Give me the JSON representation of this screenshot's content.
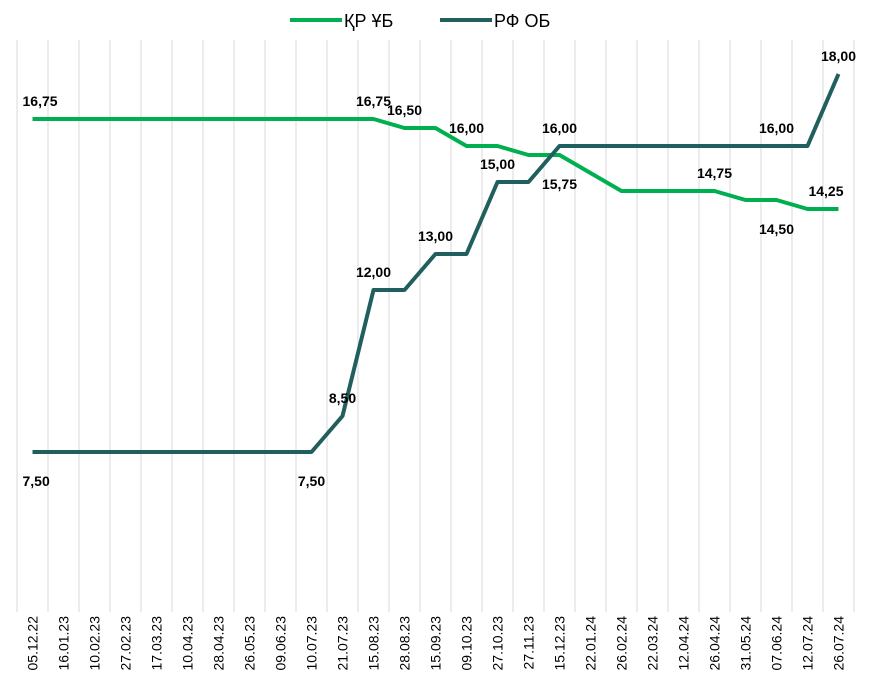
{
  "chart_data": {
    "type": "line",
    "categories": [
      "05.12.22",
      "16.01.23",
      "10.02.23",
      "27.02.23",
      "17.03.23",
      "10.04.23",
      "28.04.23",
      "26.05.23",
      "09.06.23",
      "10.07.23",
      "21.07.23",
      "15.08.23",
      "28.08.23",
      "15.09.23",
      "09.10.23",
      "27.10.23",
      "27.11.23",
      "15.12.23",
      "22.01.24",
      "26.02.24",
      "22.03.24",
      "12.04.24",
      "26.04.24",
      "31.05.24",
      "07.06.24",
      "12.07.24",
      "26.07.24"
    ],
    "series": [
      {
        "name": "ҚР ҰБ",
        "color": "#00b050",
        "values": [
          16.75,
          16.75,
          16.75,
          16.75,
          16.75,
          16.75,
          16.75,
          16.75,
          16.75,
          16.75,
          16.75,
          16.75,
          16.5,
          16.5,
          16.0,
          16.0,
          15.75,
          15.75,
          15.25,
          14.75,
          14.75,
          14.75,
          14.75,
          14.5,
          14.5,
          14.25,
          14.25
        ],
        "value_labels": [
          "16,75",
          null,
          null,
          null,
          null,
          null,
          null,
          null,
          null,
          null,
          null,
          "16,75",
          "16,50",
          null,
          "16,00",
          null,
          null,
          "15,75",
          null,
          null,
          null,
          null,
          "14,75",
          null,
          "14,50",
          null,
          "14,25"
        ]
      },
      {
        "name": "РФ ОБ",
        "color": "#215f5f",
        "values": [
          7.5,
          7.5,
          7.5,
          7.5,
          7.5,
          7.5,
          7.5,
          7.5,
          7.5,
          7.5,
          8.5,
          12.0,
          12.0,
          13.0,
          13.0,
          15.0,
          15.0,
          16.0,
          16.0,
          16.0,
          16.0,
          16.0,
          16.0,
          16.0,
          16.0,
          16.0,
          18.0
        ],
        "value_labels": [
          "7,50",
          null,
          null,
          null,
          null,
          null,
          null,
          null,
          null,
          "7,50",
          "8,50",
          "12,00",
          null,
          "13,00",
          null,
          "15,00",
          null,
          "16,00",
          null,
          null,
          null,
          null,
          null,
          null,
          "16,00",
          null,
          "18,00"
        ]
      }
    ],
    "ylim": [
      3.5,
      19
    ],
    "grid": true,
    "legend": "top"
  }
}
